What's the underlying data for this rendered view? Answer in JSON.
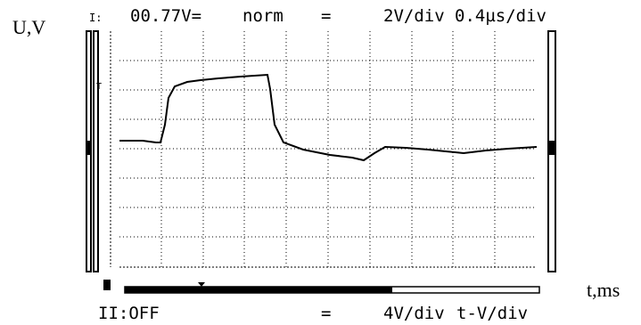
{
  "header": {
    "channel": "I:",
    "reading": "00.77V=",
    "mode": "norm",
    "coupling": "=",
    "volts_per_div": "2V/div",
    "time_per_div": "0.4µs/div"
  },
  "footer": {
    "channel": "II:OFF",
    "coupling": "=",
    "volts_per_div": "4V/div",
    "mode": "t-V/div"
  },
  "axes": {
    "y_label": "U,V",
    "x_label": "t,ms"
  }
}
